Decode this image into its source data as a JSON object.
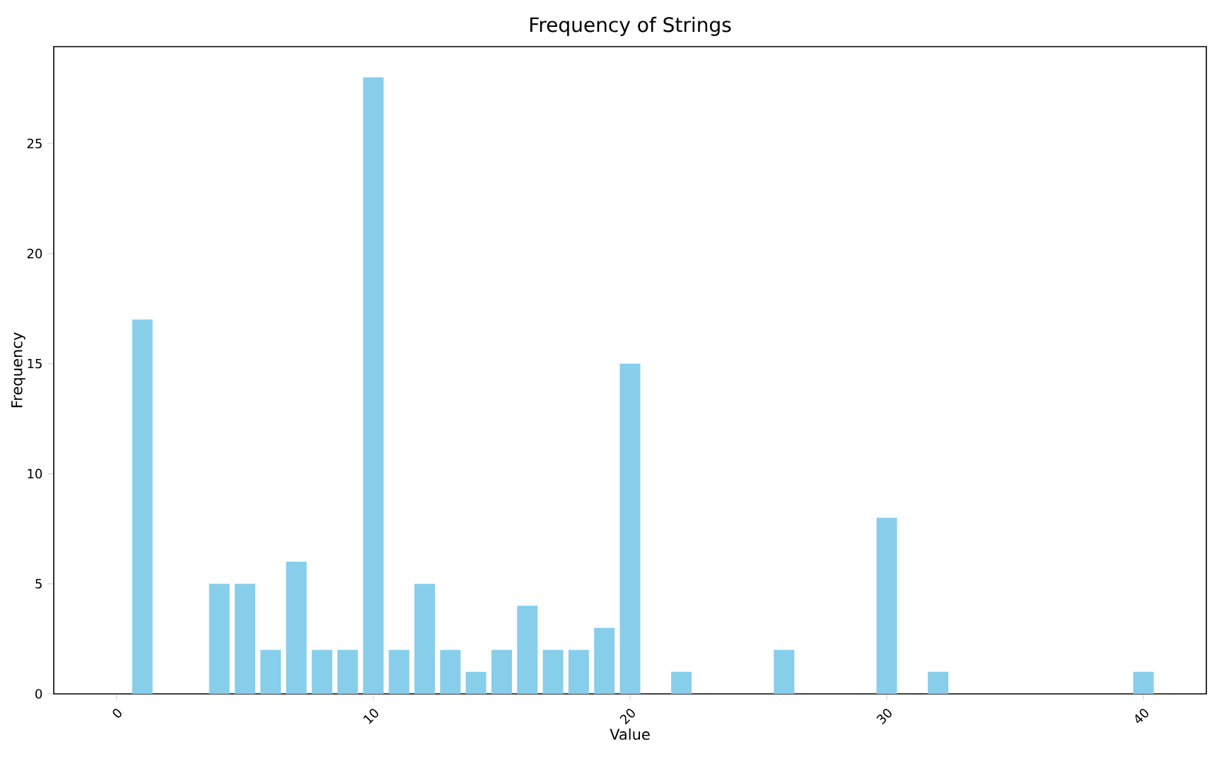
{
  "chart_data": {
    "type": "bar",
    "title": "Frequency of Strings",
    "xlabel": "Value",
    "ylabel": "Frequency",
    "x": [
      1,
      4,
      5,
      6,
      7,
      8,
      9,
      10,
      11,
      12,
      13,
      14,
      15,
      16,
      17,
      18,
      19,
      20,
      22,
      26,
      30,
      32,
      40
    ],
    "values": [
      17,
      5,
      5,
      2,
      6,
      2,
      2,
      28,
      2,
      5,
      2,
      1,
      2,
      4,
      2,
      2,
      3,
      15,
      1,
      2,
      8,
      1,
      1
    ],
    "color": "#87ceeb",
    "xlim": [
      -2.45,
      42.45
    ],
    "ylim": [
      0,
      29.4
    ],
    "xticks": [
      0,
      10,
      20,
      30,
      40
    ],
    "yticks": [
      0,
      5,
      10,
      15,
      20,
      25
    ]
  }
}
